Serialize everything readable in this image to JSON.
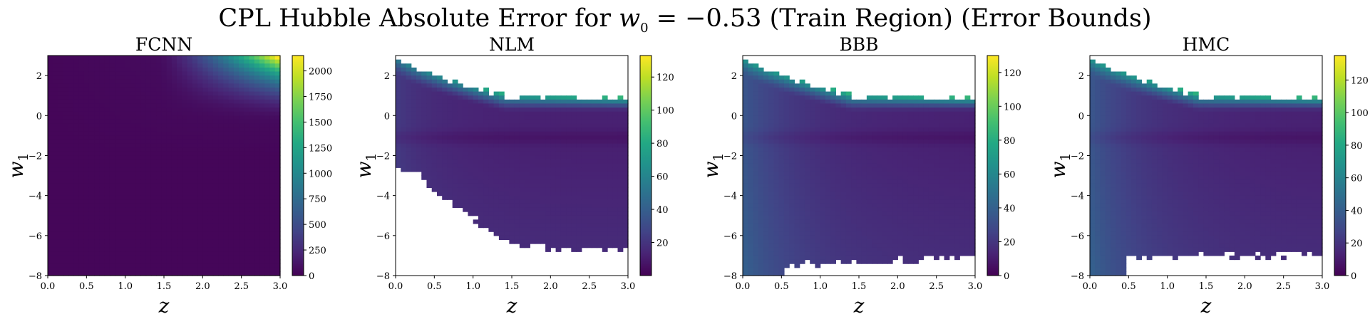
{
  "figure": {
    "title_main": "CPL Hubble Absolute Error for ",
    "title_var": "w",
    "title_sub": "0",
    "title_eq": " = −0.53 (Train Region) (Error Bounds)"
  },
  "chart_data": [
    {
      "type": "heatmap",
      "title": "FCNN",
      "xlabel": "z",
      "ylabel": "w",
      "ylabel_sub": "1",
      "xlim": [
        0.0,
        3.0
      ],
      "ylim": [
        -8,
        3
      ],
      "x_ticks": [
        "0.0",
        "0.5",
        "1.0",
        "1.5",
        "2.0",
        "2.5",
        "3.0"
      ],
      "y_ticks": [
        "2",
        "0",
        "−2",
        "−4",
        "−6",
        "−8"
      ],
      "colorbar_ticks": [
        "0",
        "250",
        "500",
        "750",
        "1000",
        "1250",
        "1500",
        "1750",
        "2000"
      ],
      "vmin": 0,
      "vmax": 2150,
      "colormap": "viridis",
      "masked": false
    },
    {
      "type": "heatmap",
      "title": "NLM",
      "xlabel": "z",
      "ylabel": "w",
      "ylabel_sub": "1",
      "xlim": [
        0.0,
        3.0
      ],
      "ylim": [
        -8,
        3
      ],
      "x_ticks": [
        "0.0",
        "0.5",
        "1.0",
        "1.5",
        "2.0",
        "2.5",
        "3.0"
      ],
      "y_ticks": [
        "2",
        "0",
        "−2",
        "−4",
        "−6",
        "−8"
      ],
      "colorbar_ticks": [
        "20",
        "40",
        "60",
        "80",
        "100",
        "120"
      ],
      "vmin": 0,
      "vmax": 133,
      "colormap": "viridis",
      "masked": true
    },
    {
      "type": "heatmap",
      "title": "BBB",
      "xlabel": "z",
      "ylabel": "w",
      "ylabel_sub": "1",
      "xlim": [
        0.0,
        3.0
      ],
      "ylim": [
        -8,
        3
      ],
      "x_ticks": [
        "0.0",
        "0.5",
        "1.0",
        "1.5",
        "2.0",
        "2.5",
        "3.0"
      ],
      "y_ticks": [
        "2",
        "0",
        "−2",
        "−4",
        "−6",
        "−8"
      ],
      "colorbar_ticks": [
        "0",
        "20",
        "40",
        "60",
        "80",
        "100",
        "120"
      ],
      "vmin": 0,
      "vmax": 130,
      "colormap": "viridis",
      "masked": true
    },
    {
      "type": "heatmap",
      "title": "HMC",
      "xlabel": "z",
      "ylabel": "w",
      "ylabel_sub": "1",
      "xlim": [
        0.0,
        3.0
      ],
      "ylim": [
        -8,
        3
      ],
      "x_ticks": [
        "0.0",
        "0.5",
        "1.0",
        "1.5",
        "2.0",
        "2.5",
        "3.0"
      ],
      "y_ticks": [
        "2",
        "0",
        "−2",
        "−4",
        "−6",
        "−8"
      ],
      "colorbar_ticks": [
        "0",
        "20",
        "40",
        "60",
        "80",
        "100",
        "120"
      ],
      "vmin": 0,
      "vmax": 135,
      "colormap": "viridis",
      "masked": true
    }
  ]
}
